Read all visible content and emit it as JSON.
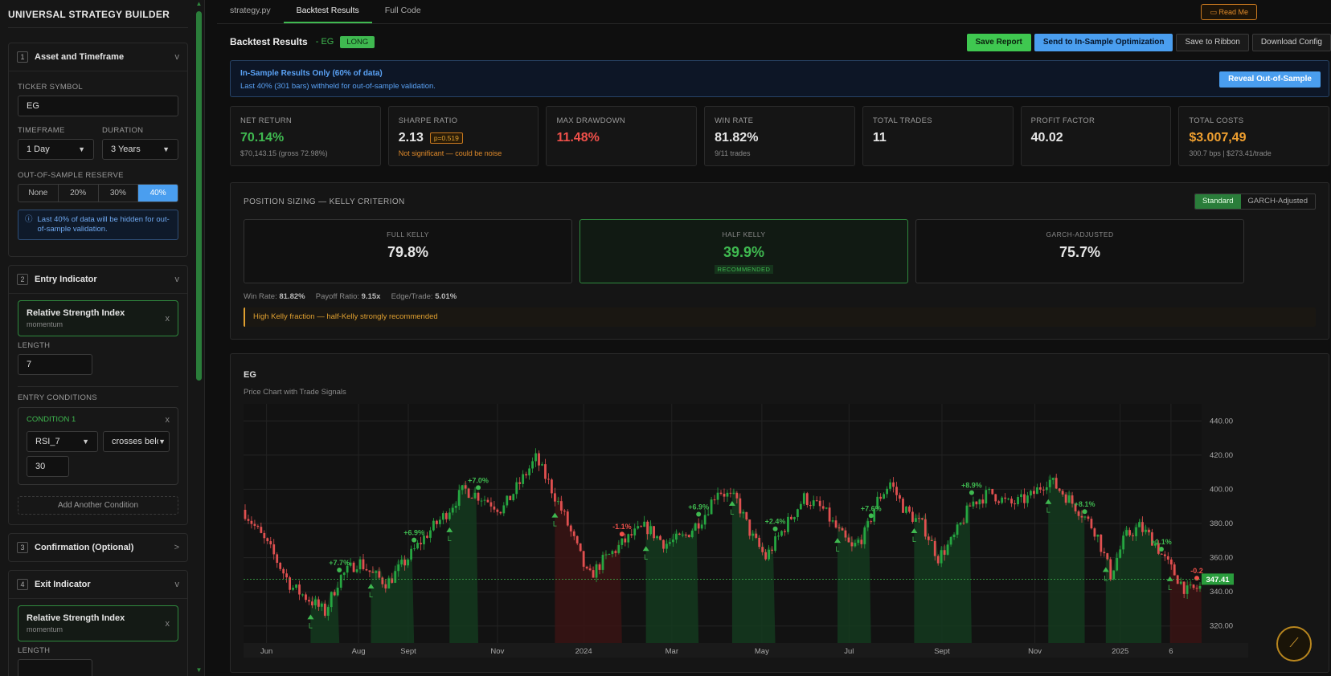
{
  "sidebar": {
    "title": "UNIVERSAL STRATEGY BUILDER",
    "asset": {
      "num": "1",
      "title": "Asset and Timeframe",
      "chevron": "v",
      "ticker_label": "TICKER SYMBOL",
      "ticker": "EG",
      "timeframe_label": "TIMEFRAME",
      "timeframe": "1 Day",
      "duration_label": "DURATION",
      "duration": "3 Years",
      "oos_label": "OUT-OF-SAMPLE RESERVE",
      "oos_options": [
        "None",
        "20%",
        "30%",
        "40%"
      ],
      "oos_selected": "40%",
      "info": "Last 40% of data will be hidden for out-of-sample validation."
    },
    "entry": {
      "num": "2",
      "title": "Entry Indicator",
      "chevron": "v",
      "indicator_name": "Relative Strength Index",
      "indicator_type": "momentum",
      "length_label": "LENGTH",
      "length": "7",
      "conditions_label": "ENTRY CONDITIONS",
      "condition_title": "CONDITION 1",
      "cond_source": "RSI_7",
      "cond_op": "crosses below",
      "cond_value": "30",
      "add_condition": "Add Another Condition"
    },
    "confirmation": {
      "num": "3",
      "title": "Confirmation (Optional)",
      "chevron": ">"
    },
    "exit": {
      "num": "4",
      "title": "Exit Indicator",
      "chevron": "v",
      "indicator_name": "Relative Strength Index",
      "indicator_type": "momentum",
      "length_label": "LENGTH"
    }
  },
  "tabs": [
    {
      "label": "strategy.py",
      "active": false
    },
    {
      "label": "Backtest Results",
      "active": true
    },
    {
      "label": "Full Code",
      "active": false
    }
  ],
  "read_me": "Read Me",
  "header": {
    "title": "Backtest Results",
    "ticker": "- EG",
    "side": "LONG",
    "buttons": {
      "save_report": "Save Report",
      "send_opt": "Send to In-Sample Optimization",
      "save_ribbon": "Save to Ribbon",
      "download": "Download Config"
    }
  },
  "insample": {
    "title": "In-Sample Results Only (60% of data)",
    "subtitle": "Last 40% (301 bars) withheld for out-of-sample validation.",
    "button": "Reveal Out-of-Sample"
  },
  "metrics": [
    {
      "label": "NET RETURN",
      "value": "70.14%",
      "sub": "$70,143.15 (gross 72.98%)",
      "color": "#3fb950"
    },
    {
      "label": "SHARPE RATIO",
      "value": "2.13",
      "pill": "p=0.519",
      "sub": "Not significant — could be noise",
      "color": "#e6e6e6",
      "sub_color": "#e08a2a"
    },
    {
      "label": "MAX DRAWDOWN",
      "value": "11.48%",
      "sub": "",
      "color": "#f0504a"
    },
    {
      "label": "WIN RATE",
      "value": "81.82%",
      "sub": "9/11 trades",
      "color": "#e6e6e6"
    },
    {
      "label": "TOTAL TRADES",
      "value": "11",
      "sub": "",
      "color": "#e6e6e6"
    },
    {
      "label": "PROFIT FACTOR",
      "value": "40.02",
      "sub": "",
      "color": "#e6e6e6"
    },
    {
      "label": "TOTAL COSTS",
      "value": "$3.007,49",
      "sub": "300.7 bps | $273.41/trade",
      "color": "#f0a030"
    }
  ],
  "kelly": {
    "title": "POSITION SIZING — KELLY CRITERION",
    "toggle": [
      "Standard",
      "GARCH-Adjusted"
    ],
    "toggle_selected": "Standard",
    "full": {
      "label": "FULL KELLY",
      "value": "79.8%"
    },
    "half": {
      "label": "HALF KELLY",
      "value": "39.9%",
      "badge": "RECOMMENDED"
    },
    "garch": {
      "label": "GARCH-ADJUSTED",
      "value": "75.7%"
    },
    "stats": {
      "win_rate_label": "Win Rate:",
      "win_rate": "81.82%",
      "payoff_label": "Payoff Ratio:",
      "payoff": "9.15x",
      "edge_label": "Edge/Trade:",
      "edge": "5.01%"
    },
    "warning": "High Kelly fraction — half-Kelly strongly recommended"
  },
  "chart_data": {
    "type": "candlestick",
    "title": "EG",
    "subtitle": "Price Chart with Trade Signals",
    "ylim": [
      310,
      450
    ],
    "y_ticks": [
      320,
      340,
      360,
      380,
      400,
      420,
      440
    ],
    "y_tick_labels": [
      "320.00",
      "340.00",
      "360.00",
      "380.00",
      "400.00",
      "420.00",
      "440.00"
    ],
    "x_ticks": [
      "Jun",
      "Aug",
      "Sept",
      "Nov",
      "2024",
      "Mar",
      "May",
      "Jul",
      "Sept",
      "Nov",
      "2025",
      "6"
    ],
    "x_tick_positions": [
      0.024,
      0.12,
      0.172,
      0.265,
      0.355,
      0.447,
      0.541,
      0.632,
      0.729,
      0.826,
      0.915,
      0.968
    ],
    "last_price": 347.41,
    "last_price_label": "347.41",
    "anchors": [
      [
        0,
        388
      ],
      [
        0.03,
        363
      ],
      [
        0.05,
        343
      ],
      [
        0.07,
        335
      ],
      [
        0.085,
        328
      ],
      [
        0.1,
        348
      ],
      [
        0.12,
        358
      ],
      [
        0.135,
        350
      ],
      [
        0.15,
        345
      ],
      [
        0.175,
        362
      ],
      [
        0.19,
        373
      ],
      [
        0.21,
        385
      ],
      [
        0.23,
        400
      ],
      [
        0.25,
        395
      ],
      [
        0.27,
        388
      ],
      [
        0.29,
        405
      ],
      [
        0.305,
        418
      ],
      [
        0.32,
        402
      ],
      [
        0.335,
        384
      ],
      [
        0.35,
        363
      ],
      [
        0.36,
        348
      ],
      [
        0.375,
        358
      ],
      [
        0.395,
        368
      ],
      [
        0.405,
        373
      ],
      [
        0.42,
        378
      ],
      [
        0.44,
        368
      ],
      [
        0.46,
        372
      ],
      [
        0.48,
        384
      ],
      [
        0.495,
        400
      ],
      [
        0.515,
        393
      ],
      [
        0.53,
        373
      ],
      [
        0.545,
        360
      ],
      [
        0.565,
        378
      ],
      [
        0.585,
        395
      ],
      [
        0.605,
        388
      ],
      [
        0.62,
        376
      ],
      [
        0.635,
        365
      ],
      [
        0.65,
        375
      ],
      [
        0.66,
        392
      ],
      [
        0.675,
        404
      ],
      [
        0.69,
        388
      ],
      [
        0.71,
        378
      ],
      [
        0.725,
        360
      ],
      [
        0.74,
        370
      ],
      [
        0.76,
        392
      ],
      [
        0.78,
        398
      ],
      [
        0.8,
        391
      ],
      [
        0.82,
        395
      ],
      [
        0.84,
        406
      ],
      [
        0.855,
        398
      ],
      [
        0.875,
        386
      ],
      [
        0.89,
        375
      ],
      [
        0.905,
        350
      ],
      [
        0.92,
        372
      ],
      [
        0.935,
        378
      ],
      [
        0.95,
        370
      ],
      [
        0.96,
        360
      ],
      [
        0.975,
        348
      ],
      [
        0.985,
        340
      ],
      [
        1.0,
        343
      ],
      [
        1.02,
        352
      ]
    ],
    "trades": [
      {
        "entry": 0.07,
        "exit": 0.1,
        "pnl": "+7.7%",
        "win": true
      },
      {
        "entry": 0.133,
        "exit": 0.178,
        "pnl": "+6.9%",
        "win": true
      },
      {
        "entry": 0.215,
        "exit": 0.245,
        "pnl": "+7.0%",
        "win": true
      },
      {
        "entry": 0.325,
        "exit": 0.395,
        "pnl": "-1.1%",
        "win": false
      },
      {
        "entry": 0.42,
        "exit": 0.475,
        "pnl": "+6.9%",
        "win": true
      },
      {
        "entry": 0.51,
        "exit": 0.555,
        "pnl": "+2.4%",
        "win": true
      },
      {
        "entry": 0.62,
        "exit": 0.655,
        "pnl": "+7.6%",
        "win": true
      },
      {
        "entry": 0.7,
        "exit": 0.76,
        "pnl": "+8.9%",
        "win": true
      },
      {
        "entry": 0.84,
        "exit": 0.878,
        "pnl": "+8.1%",
        "win": true
      },
      {
        "entry": 0.9,
        "exit": 0.958,
        "pnl": "+1.1%",
        "win": true
      },
      {
        "entry": 0.967,
        "exit": 1.0,
        "pnl": "-0.2",
        "win": false
      }
    ],
    "entry_marker_label": "L",
    "colors": {
      "up": "#26a641",
      "down": "#e05050",
      "win_zone": "#143a1e",
      "loss_zone": "#3a1414",
      "price_line": "#3fb950"
    }
  }
}
